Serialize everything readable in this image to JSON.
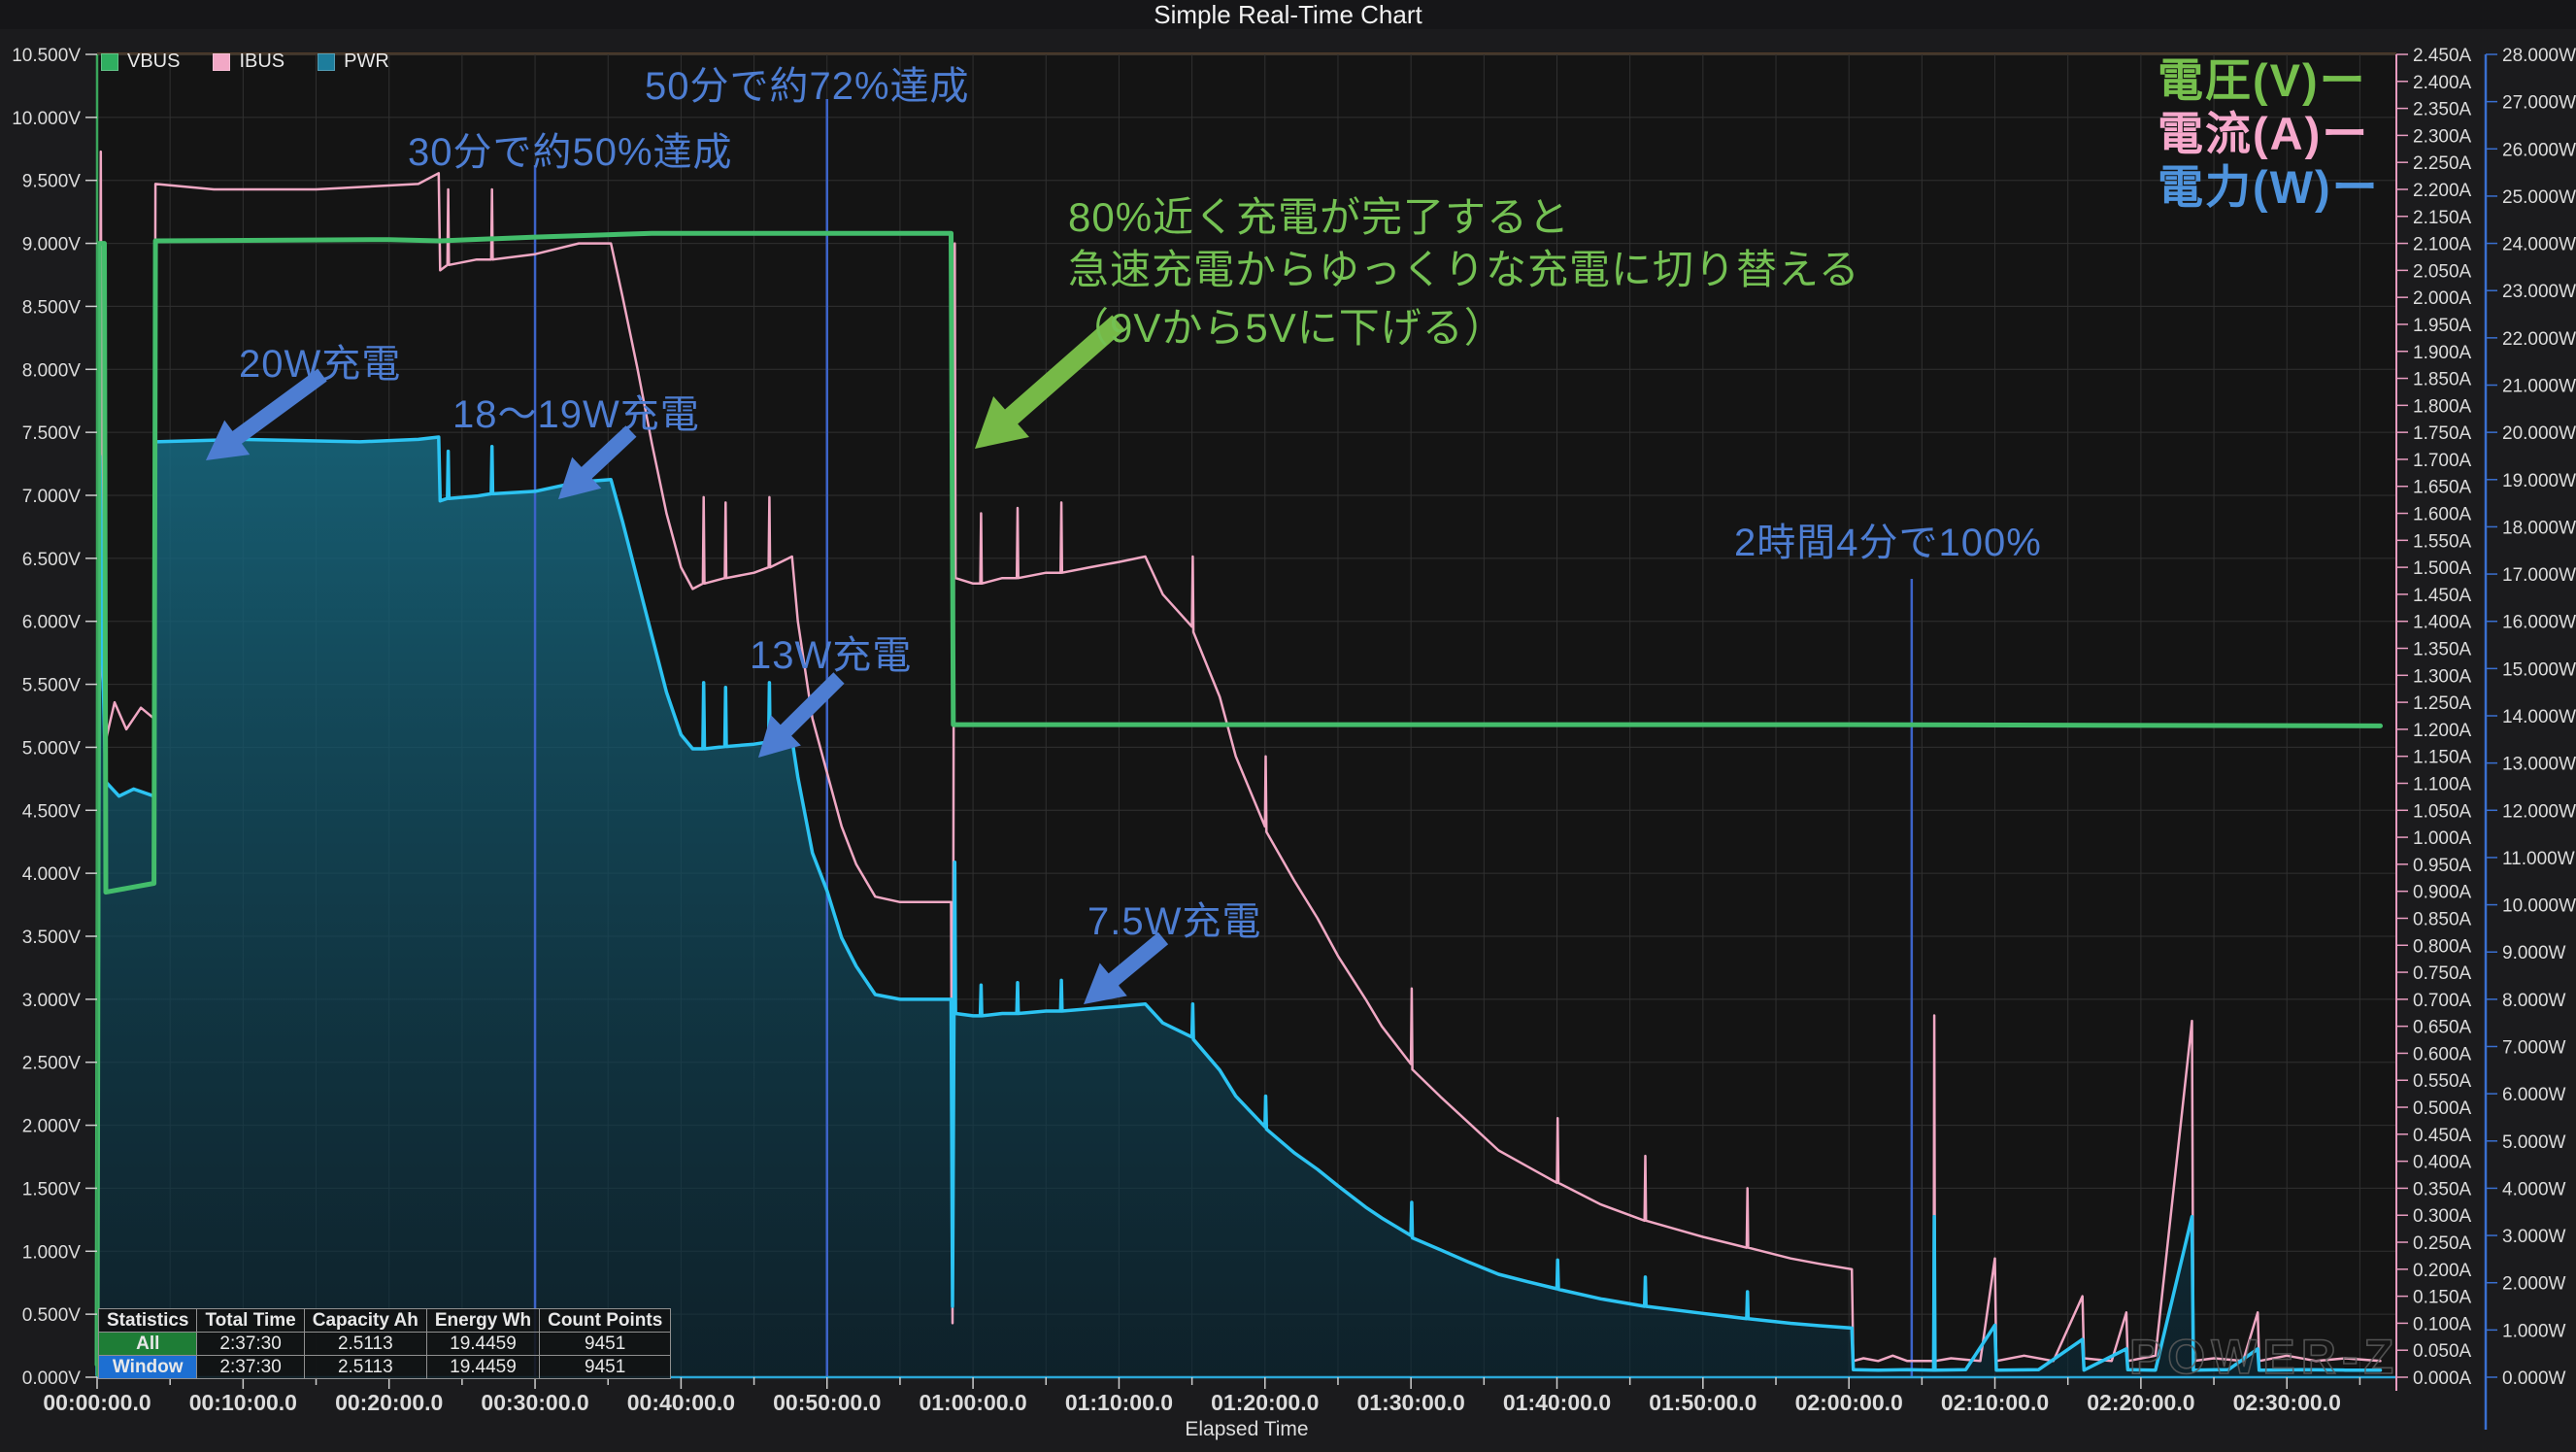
{
  "title": "Simple Real-Time Chart",
  "watermark": "POWER-Z",
  "legend": {
    "items": [
      {
        "label": "VBUS",
        "color": "#2fae60"
      },
      {
        "label": "IBUS",
        "color": "#f2a8c6"
      },
      {
        "label": "PWR",
        "color": "#1d7d9c"
      }
    ]
  },
  "right_legend": [
    {
      "label": "電圧(V)ー",
      "color": "#76c04d"
    },
    {
      "label": "電流(A)ー",
      "color": "#f6a8cc"
    },
    {
      "label": "電力(W)ー",
      "color": "#4e93dd"
    }
  ],
  "annotations": {
    "a30": "30分で約50%達成",
    "a50": "50分で約72%達成",
    "g1": "80%近く充電が完了すると",
    "g2": "急速充電からゆっくりな充電に切り替える",
    "g3": "（9Vから5Vに下げる）",
    "w20": "20W充電",
    "w1819": "18～19W充電",
    "w13": "13W充電",
    "w75": "7.5W充電",
    "h2m4": "2時間4分で100%"
  },
  "stats_table": {
    "headers": [
      "Statistics",
      "Total Time",
      "Capacity Ah",
      "Energy Wh",
      "Count Points"
    ],
    "rows": [
      {
        "label": "All",
        "label_bg": "#1e7d36",
        "values": [
          "2:37:30",
          "2.5113",
          "19.4459",
          "9451"
        ]
      },
      {
        "label": "Window",
        "label_bg": "#1d6fd2",
        "values": [
          "2:37:30",
          "2.5113",
          "19.4459",
          "9451"
        ]
      }
    ]
  },
  "chart_data": {
    "type": "line",
    "title": "Simple Real-Time Chart",
    "xlabel": "Elapsed Time",
    "grid": true,
    "axes": {
      "t": {
        "min": 0,
        "max": 157.5,
        "major": 10,
        "minor": 5,
        "xlabel": "Elapsed Time",
        "labels": [
          "00:00:00.0",
          "00:10:00.0",
          "00:20:00.0",
          "00:30:00.0",
          "00:40:00.0",
          "00:50:00.0",
          "01:00:00.0",
          "01:10:00.0",
          "01:20:00.0",
          "01:30:00.0",
          "01:40:00.0",
          "01:50:00.0",
          "02:00:00.0",
          "02:10:00.0",
          "02:20:00.0",
          "02:30:00.0"
        ]
      },
      "v": {
        "min": 0,
        "max": 10.5,
        "step": 0.5,
        "suffix": "V",
        "decimals": 3,
        "axis_color": "#3aa65c"
      },
      "a": {
        "min": 0,
        "max": 2.45,
        "step": 0.05,
        "suffix": "A",
        "decimals": 3,
        "axis_color": "#e89cc0"
      },
      "w": {
        "min": 0,
        "max": 28,
        "step": 1,
        "suffix": "W",
        "decimals": 3,
        "axis_color": "#3a6fd0"
      }
    },
    "markers": [
      {
        "t": 30,
        "note": "30min marker"
      },
      {
        "t": 50,
        "note": "50min marker"
      },
      {
        "t": 124.3,
        "note": "2h04 100% marker"
      }
    ],
    "series": [
      {
        "name": "VBUS",
        "unit": "V",
        "color": "#43bd6b",
        "width": 5,
        "points": [
          [
            0,
            0.1
          ],
          [
            0.15,
            9.0
          ],
          [
            0.5,
            9.0
          ],
          [
            0.6,
            3.85
          ],
          [
            2,
            3.88
          ],
          [
            3.9,
            3.92
          ],
          [
            4.0,
            9.02
          ],
          [
            20,
            9.03
          ],
          [
            23.5,
            9.02
          ],
          [
            30,
            9.05
          ],
          [
            38,
            9.08
          ],
          [
            58.5,
            9.08
          ],
          [
            58.65,
            5.18
          ],
          [
            120,
            5.18
          ],
          [
            156.4,
            5.17
          ]
        ]
      },
      {
        "name": "IBUS",
        "unit": "A",
        "color": "#f0a8c4",
        "width": 2.5,
        "points": [
          [
            0,
            0.02
          ],
          [
            0.25,
            2.27
          ],
          [
            0.35,
            1.3
          ],
          [
            0.6,
            1.18
          ],
          [
            1.2,
            1.25
          ],
          [
            2,
            1.2
          ],
          [
            3,
            1.24
          ],
          [
            3.9,
            1.22
          ],
          [
            4.0,
            2.21
          ],
          [
            8,
            2.2
          ],
          [
            15,
            2.2
          ],
          [
            22,
            2.21
          ],
          [
            23.4,
            2.23
          ],
          [
            23.5,
            2.05
          ],
          [
            24,
            2.06
          ],
          [
            24.05,
            2.2
          ],
          [
            24.1,
            2.06
          ],
          [
            26,
            2.07
          ],
          [
            27,
            2.07
          ],
          [
            27.05,
            2.2
          ],
          [
            27.1,
            2.07
          ],
          [
            30,
            2.08
          ],
          [
            33,
            2.1
          ],
          [
            35.2,
            2.1
          ],
          [
            36,
            2.0
          ],
          [
            37,
            1.87
          ],
          [
            38,
            1.73
          ],
          [
            39,
            1.6
          ],
          [
            40,
            1.5
          ],
          [
            40.8,
            1.46
          ],
          [
            41.5,
            1.47
          ],
          [
            41.55,
            1.63
          ],
          [
            41.6,
            1.47
          ],
          [
            43,
            1.48
          ],
          [
            43.05,
            1.62
          ],
          [
            43.1,
            1.48
          ],
          [
            45,
            1.49
          ],
          [
            46,
            1.5
          ],
          [
            46.05,
            1.63
          ],
          [
            46.1,
            1.5
          ],
          [
            47.6,
            1.52
          ],
          [
            48,
            1.4
          ],
          [
            49,
            1.22
          ],
          [
            50,
            1.12
          ],
          [
            51,
            1.02
          ],
          [
            52,
            0.95
          ],
          [
            53.3,
            0.89
          ],
          [
            55,
            0.88
          ],
          [
            58.5,
            0.88
          ],
          [
            58.6,
            0.1
          ],
          [
            58.7,
            1.55
          ],
          [
            58.75,
            2.1
          ],
          [
            58.8,
            1.48
          ],
          [
            60,
            1.47
          ],
          [
            60.5,
            1.47
          ],
          [
            60.55,
            1.6
          ],
          [
            60.6,
            1.47
          ],
          [
            62,
            1.48
          ],
          [
            63,
            1.48
          ],
          [
            63.05,
            1.61
          ],
          [
            63.1,
            1.48
          ],
          [
            65,
            1.49
          ],
          [
            66,
            1.49
          ],
          [
            66.05,
            1.62
          ],
          [
            66.1,
            1.49
          ],
          [
            68,
            1.5
          ],
          [
            70,
            1.51
          ],
          [
            71.8,
            1.52
          ],
          [
            73,
            1.45
          ],
          [
            75,
            1.39
          ],
          [
            75.05,
            1.52
          ],
          [
            75.1,
            1.38
          ],
          [
            76.9,
            1.26
          ],
          [
            78,
            1.15
          ],
          [
            80,
            1.02
          ],
          [
            80.05,
            1.15
          ],
          [
            80.1,
            1.01
          ],
          [
            82,
            0.92
          ],
          [
            83.6,
            0.85
          ],
          [
            85,
            0.78
          ],
          [
            86.9,
            0.7
          ],
          [
            88,
            0.65
          ],
          [
            90,
            0.58
          ],
          [
            90.05,
            0.72
          ],
          [
            90.1,
            0.57
          ],
          [
            92,
            0.52
          ],
          [
            94,
            0.47
          ],
          [
            96,
            0.42
          ],
          [
            98,
            0.39
          ],
          [
            100,
            0.36
          ],
          [
            100.05,
            0.48
          ],
          [
            100.1,
            0.36
          ],
          [
            103,
            0.32
          ],
          [
            106,
            0.29
          ],
          [
            106.05,
            0.41
          ],
          [
            106.1,
            0.29
          ],
          [
            110,
            0.26
          ],
          [
            113,
            0.24
          ],
          [
            113.05,
            0.35
          ],
          [
            113.1,
            0.24
          ],
          [
            116,
            0.22
          ],
          [
            118,
            0.21
          ],
          [
            120.2,
            0.2
          ],
          [
            120.3,
            0.03
          ],
          [
            121,
            0.035
          ],
          [
            122,
            0.03
          ],
          [
            123,
            0.04
          ],
          [
            124,
            0.03
          ],
          [
            125.8,
            0.03
          ],
          [
            125.85,
            0.67
          ],
          [
            125.9,
            0.03
          ],
          [
            127,
            0.035
          ],
          [
            129,
            0.03
          ],
          [
            130,
            0.22
          ],
          [
            130.1,
            0.03
          ],
          [
            132,
            0.04
          ],
          [
            134,
            0.03
          ],
          [
            136,
            0.15
          ],
          [
            136.1,
            0.035
          ],
          [
            138,
            0.03
          ],
          [
            139,
            0.12
          ],
          [
            139.1,
            0.03
          ],
          [
            141,
            0.04
          ],
          [
            143.5,
            0.66
          ],
          [
            143.6,
            0.03
          ],
          [
            145,
            0.035
          ],
          [
            147,
            0.03
          ],
          [
            148,
            0.12
          ],
          [
            148.1,
            0.03
          ],
          [
            150,
            0.04
          ],
          [
            152,
            0.03
          ],
          [
            154,
            0.035
          ],
          [
            156.4,
            0.03
          ]
        ]
      },
      {
        "name": "PWR",
        "unit": "W",
        "color": "#2cc3f2",
        "width": 3.5,
        "fill": true,
        "points": [
          [
            0,
            0.05
          ],
          [
            0.2,
            19.5
          ],
          [
            0.35,
            15.5
          ],
          [
            0.6,
            12.6
          ],
          [
            1.5,
            12.3
          ],
          [
            2.5,
            12.45
          ],
          [
            3.9,
            12.3
          ],
          [
            4.0,
            19.8
          ],
          [
            10,
            19.85
          ],
          [
            18,
            19.8
          ],
          [
            22,
            19.85
          ],
          [
            23.4,
            19.9
          ],
          [
            23.5,
            18.55
          ],
          [
            24,
            18.6
          ],
          [
            24.05,
            19.6
          ],
          [
            24.1,
            18.6
          ],
          [
            26,
            18.65
          ],
          [
            27,
            18.7
          ],
          [
            27.05,
            19.7
          ],
          [
            27.1,
            18.7
          ],
          [
            30,
            18.75
          ],
          [
            33,
            18.95
          ],
          [
            35.2,
            19.0
          ],
          [
            36,
            18.1
          ],
          [
            37,
            16.9
          ],
          [
            38,
            15.7
          ],
          [
            39,
            14.5
          ],
          [
            40,
            13.6
          ],
          [
            40.8,
            13.3
          ],
          [
            41.5,
            13.3
          ],
          [
            41.55,
            14.7
          ],
          [
            41.6,
            13.3
          ],
          [
            43,
            13.35
          ],
          [
            43.05,
            14.6
          ],
          [
            43.1,
            13.35
          ],
          [
            45,
            13.4
          ],
          [
            46,
            13.45
          ],
          [
            46.05,
            14.7
          ],
          [
            46.1,
            13.45
          ],
          [
            47.6,
            13.5
          ],
          [
            48,
            12.7
          ],
          [
            49,
            11.1
          ],
          [
            50,
            10.3
          ],
          [
            51,
            9.3
          ],
          [
            52,
            8.7
          ],
          [
            53.3,
            8.1
          ],
          [
            55,
            8.0
          ],
          [
            58.5,
            8.0
          ],
          [
            58.6,
            1.5
          ],
          [
            58.7,
            7.6
          ],
          [
            58.75,
            10.9
          ],
          [
            58.8,
            7.7
          ],
          [
            60,
            7.65
          ],
          [
            60.5,
            7.65
          ],
          [
            60.55,
            8.3
          ],
          [
            60.6,
            7.65
          ],
          [
            62,
            7.7
          ],
          [
            63,
            7.7
          ],
          [
            63.05,
            8.35
          ],
          [
            63.1,
            7.7
          ],
          [
            65,
            7.75
          ],
          [
            66,
            7.75
          ],
          [
            66.05,
            8.4
          ],
          [
            66.1,
            7.75
          ],
          [
            68,
            7.8
          ],
          [
            70,
            7.85
          ],
          [
            71.8,
            7.9
          ],
          [
            73,
            7.5
          ],
          [
            75,
            7.2
          ],
          [
            75.05,
            7.9
          ],
          [
            75.1,
            7.15
          ],
          [
            76.9,
            6.5
          ],
          [
            78,
            5.95
          ],
          [
            80,
            5.3
          ],
          [
            80.05,
            5.95
          ],
          [
            80.1,
            5.25
          ],
          [
            82,
            4.75
          ],
          [
            83.6,
            4.4
          ],
          [
            85,
            4.05
          ],
          [
            86.9,
            3.6
          ],
          [
            88,
            3.37
          ],
          [
            90,
            3.0
          ],
          [
            90.05,
            3.7
          ],
          [
            90.1,
            2.95
          ],
          [
            92,
            2.7
          ],
          [
            94,
            2.43
          ],
          [
            96,
            2.18
          ],
          [
            98,
            2.02
          ],
          [
            100,
            1.87
          ],
          [
            100.05,
            2.48
          ],
          [
            100.1,
            1.86
          ],
          [
            103,
            1.66
          ],
          [
            106,
            1.5
          ],
          [
            106.05,
            2.12
          ],
          [
            106.1,
            1.5
          ],
          [
            110,
            1.35
          ],
          [
            113,
            1.24
          ],
          [
            113.05,
            1.81
          ],
          [
            113.1,
            1.24
          ],
          [
            116,
            1.14
          ],
          [
            118,
            1.09
          ],
          [
            120.2,
            1.04
          ],
          [
            120.3,
            0.16
          ],
          [
            122,
            0.15
          ],
          [
            124,
            0.16
          ],
          [
            125.8,
            0.15
          ],
          [
            125.85,
            3.4
          ],
          [
            125.9,
            0.15
          ],
          [
            128,
            0.16
          ],
          [
            130,
            1.1
          ],
          [
            130.1,
            0.15
          ],
          [
            133,
            0.16
          ],
          [
            136,
            0.8
          ],
          [
            136.1,
            0.15
          ],
          [
            139,
            0.6
          ],
          [
            139.1,
            0.16
          ],
          [
            141,
            0.15
          ],
          [
            143.5,
            3.4
          ],
          [
            143.6,
            0.15
          ],
          [
            146,
            0.16
          ],
          [
            148,
            0.6
          ],
          [
            148.1,
            0.15
          ],
          [
            151,
            0.16
          ],
          [
            154,
            0.15
          ],
          [
            156.4,
            0.15
          ]
        ]
      }
    ]
  }
}
